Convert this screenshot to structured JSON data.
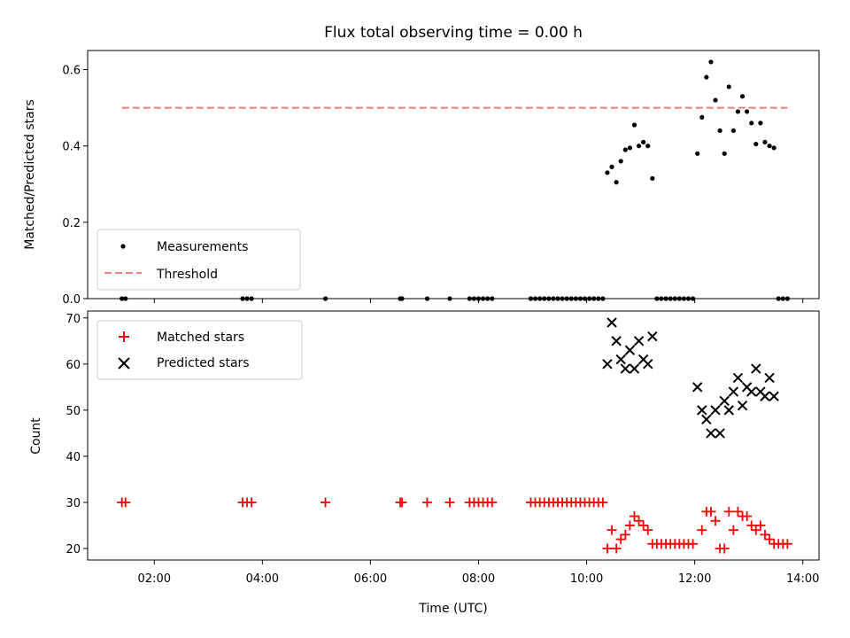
{
  "chart_data": [
    {
      "type": "scatter",
      "title": "Flux total observing time = 0.00 h",
      "xlabel": "",
      "ylabel": "Matched/Predicted stars",
      "ylim": [
        0,
        0.65
      ],
      "xlim": [
        "00:46",
        "14:18"
      ],
      "yticks": [
        0.0,
        0.2,
        0.4,
        0.6
      ],
      "ytick_labels": [
        "0.0",
        "0.2",
        "0.4",
        "0.6"
      ],
      "legend_position": "lower-left",
      "series": [
        {
          "name": "Measurements",
          "marker": "dot",
          "color": "#000000",
          "points": [
            [
              "01:24",
              0
            ],
            [
              "01:28",
              0
            ],
            [
              "03:38",
              0
            ],
            [
              "03:43",
              0
            ],
            [
              "03:48",
              0
            ],
            [
              "05:10",
              0
            ],
            [
              "06:33",
              0
            ],
            [
              "06:35",
              0
            ],
            [
              "07:03",
              0
            ],
            [
              "07:28",
              0
            ],
            [
              "07:50",
              0
            ],
            [
              "07:55",
              0
            ],
            [
              "08:00",
              0
            ],
            [
              "08:05",
              0
            ],
            [
              "08:10",
              0
            ],
            [
              "08:15",
              0
            ],
            [
              "08:58",
              0
            ],
            [
              "09:03",
              0
            ],
            [
              "09:08",
              0
            ],
            [
              "09:13",
              0
            ],
            [
              "09:18",
              0
            ],
            [
              "09:23",
              0
            ],
            [
              "09:28",
              0
            ],
            [
              "09:33",
              0
            ],
            [
              "09:38",
              0
            ],
            [
              "09:43",
              0
            ],
            [
              "09:48",
              0
            ],
            [
              "09:53",
              0
            ],
            [
              "09:58",
              0
            ],
            [
              "10:03",
              0
            ],
            [
              "10:08",
              0
            ],
            [
              "10:13",
              0
            ],
            [
              "10:18",
              0
            ],
            [
              "10:23",
              0.33
            ],
            [
              "10:28",
              0.345
            ],
            [
              "10:33",
              0.305
            ],
            [
              "10:38",
              0.36
            ],
            [
              "10:43",
              0.39
            ],
            [
              "10:48",
              0.395
            ],
            [
              "10:53",
              0.455
            ],
            [
              "10:58",
              0.4
            ],
            [
              "11:03",
              0.41
            ],
            [
              "11:08",
              0.4
            ],
            [
              "11:13",
              0.315
            ],
            [
              "11:18",
              0
            ],
            [
              "11:23",
              0
            ],
            [
              "11:28",
              0
            ],
            [
              "11:33",
              0
            ],
            [
              "11:38",
              0
            ],
            [
              "11:43",
              0
            ],
            [
              "11:48",
              0
            ],
            [
              "11:53",
              0
            ],
            [
              "11:58",
              0
            ],
            [
              "12:03",
              0.38
            ],
            [
              "12:08",
              0.475
            ],
            [
              "12:13",
              0.58
            ],
            [
              "12:18",
              0.62
            ],
            [
              "12:23",
              0.52
            ],
            [
              "12:28",
              0.44
            ],
            [
              "12:33",
              0.38
            ],
            [
              "12:38",
              0.555
            ],
            [
              "12:43",
              0.44
            ],
            [
              "12:48",
              0.49
            ],
            [
              "12:53",
              0.53
            ],
            [
              "12:58",
              0.49
            ],
            [
              "13:03",
              0.46
            ],
            [
              "13:08",
              0.405
            ],
            [
              "13:13",
              0.46
            ],
            [
              "13:18",
              0.41
            ],
            [
              "13:23",
              0.4
            ],
            [
              "13:28",
              0.395
            ],
            [
              "13:33",
              0
            ],
            [
              "13:38",
              0
            ],
            [
              "13:43",
              0
            ]
          ]
        },
        {
          "name": "Threshold",
          "marker": "dashed-line",
          "color": "#f08080",
          "points": [
            [
              "01:24",
              0.5
            ],
            [
              "13:43",
              0.5
            ]
          ]
        }
      ]
    },
    {
      "type": "scatter",
      "title": "",
      "xlabel": "Time (UTC)",
      "ylabel": "Count",
      "ylim": [
        17.5,
        71.5
      ],
      "xlim": [
        "00:46",
        "14:18"
      ],
      "yticks": [
        20,
        30,
        40,
        50,
        60,
        70
      ],
      "ytick_labels": [
        "20",
        "30",
        "40",
        "50",
        "60",
        "70"
      ],
      "xticks": [
        "02:00",
        "04:00",
        "06:00",
        "08:00",
        "10:00",
        "12:00",
        "14:00"
      ],
      "xtick_labels": [
        "02:00",
        "04:00",
        "06:00",
        "08:00",
        "10:00",
        "12:00",
        "14:00"
      ],
      "legend_position": "upper-left",
      "series": [
        {
          "name": "Matched stars",
          "marker": "plus",
          "color": "#ff0000",
          "points": [
            [
              "01:24",
              30
            ],
            [
              "01:28",
              30
            ],
            [
              "03:38",
              30
            ],
            [
              "03:43",
              30
            ],
            [
              "03:48",
              30
            ],
            [
              "05:10",
              30
            ],
            [
              "06:33",
              30
            ],
            [
              "06:35",
              30
            ],
            [
              "07:03",
              30
            ],
            [
              "07:28",
              30
            ],
            [
              "07:50",
              30
            ],
            [
              "07:55",
              30
            ],
            [
              "08:00",
              30
            ],
            [
              "08:05",
              30
            ],
            [
              "08:10",
              30
            ],
            [
              "08:15",
              30
            ],
            [
              "08:58",
              30
            ],
            [
              "09:03",
              30
            ],
            [
              "09:08",
              30
            ],
            [
              "09:13",
              30
            ],
            [
              "09:18",
              30
            ],
            [
              "09:23",
              30
            ],
            [
              "09:28",
              30
            ],
            [
              "09:33",
              30
            ],
            [
              "09:38",
              30
            ],
            [
              "09:43",
              30
            ],
            [
              "09:48",
              30
            ],
            [
              "09:53",
              30
            ],
            [
              "09:58",
              30
            ],
            [
              "10:03",
              30
            ],
            [
              "10:08",
              30
            ],
            [
              "10:13",
              30
            ],
            [
              "10:18",
              30
            ],
            [
              "10:23",
              20
            ],
            [
              "10:28",
              24
            ],
            [
              "10:33",
              20
            ],
            [
              "10:38",
              22
            ],
            [
              "10:43",
              23
            ],
            [
              "10:48",
              25
            ],
            [
              "10:53",
              27
            ],
            [
              "10:58",
              26
            ],
            [
              "11:03",
              25
            ],
            [
              "11:08",
              24
            ],
            [
              "11:13",
              21
            ],
            [
              "11:18",
              21
            ],
            [
              "11:23",
              21
            ],
            [
              "11:28",
              21
            ],
            [
              "11:33",
              21
            ],
            [
              "11:38",
              21
            ],
            [
              "11:43",
              21
            ],
            [
              "11:48",
              21
            ],
            [
              "11:53",
              21
            ],
            [
              "11:58",
              21
            ],
            [
              "12:08",
              24
            ],
            [
              "12:13",
              28
            ],
            [
              "12:18",
              28
            ],
            [
              "12:23",
              26
            ],
            [
              "12:28",
              20
            ],
            [
              "12:33",
              20
            ],
            [
              "12:38",
              28
            ],
            [
              "12:43",
              24
            ],
            [
              "12:48",
              28
            ],
            [
              "12:53",
              27
            ],
            [
              "12:58",
              27
            ],
            [
              "13:03",
              25
            ],
            [
              "13:08",
              24
            ],
            [
              "13:13",
              25
            ],
            [
              "13:18",
              23
            ],
            [
              "13:23",
              22
            ],
            [
              "13:28",
              21
            ],
            [
              "13:33",
              21
            ],
            [
              "13:38",
              21
            ],
            [
              "13:43",
              21
            ]
          ]
        },
        {
          "name": "Predicted stars",
          "marker": "x",
          "color": "#000000",
          "points": [
            [
              "10:23",
              60
            ],
            [
              "10:28",
              69
            ],
            [
              "10:33",
              65
            ],
            [
              "10:38",
              61
            ],
            [
              "10:43",
              59
            ],
            [
              "10:48",
              63
            ],
            [
              "10:53",
              59
            ],
            [
              "10:58",
              65
            ],
            [
              "11:03",
              61
            ],
            [
              "11:08",
              60
            ],
            [
              "11:13",
              66
            ],
            [
              "12:03",
              55
            ],
            [
              "12:08",
              50
            ],
            [
              "12:13",
              48
            ],
            [
              "12:18",
              45
            ],
            [
              "12:23",
              50
            ],
            [
              "12:28",
              45
            ],
            [
              "12:33",
              52
            ],
            [
              "12:38",
              50
            ],
            [
              "12:43",
              54
            ],
            [
              "12:48",
              57
            ],
            [
              "12:53",
              51
            ],
            [
              "12:58",
              55
            ],
            [
              "13:03",
              54
            ],
            [
              "13:08",
              59
            ],
            [
              "13:13",
              54
            ],
            [
              "13:18",
              53
            ],
            [
              "13:23",
              57
            ],
            [
              "13:28",
              53
            ]
          ]
        }
      ]
    }
  ]
}
